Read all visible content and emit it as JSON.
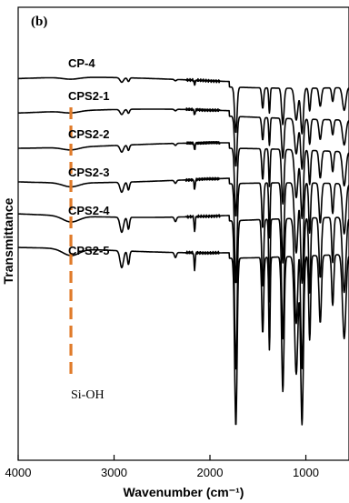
{
  "chart_data": {
    "type": "line",
    "panel_label": "(b)",
    "xlabel": "Wavenumber (cm⁻¹)",
    "ylabel": "Transmittance",
    "xlim": [
      4000,
      550
    ],
    "x_reversed": true,
    "xticks": [
      4000,
      3000,
      2000,
      1000
    ],
    "grid": false,
    "series": [
      {
        "name": "CP-4"
      },
      {
        "name": "CPS2-1"
      },
      {
        "name": "CPS2-2"
      },
      {
        "name": "CPS2-3"
      },
      {
        "name": "CPS2-4"
      },
      {
        "name": "CPS2-5"
      }
    ],
    "annotation": {
      "label": "Si-OH",
      "x": 3450,
      "color": "#e07b2a"
    },
    "spectrum_features": {
      "wavenumbers": [
        4000,
        3450,
        2920,
        2850,
        2360,
        2160,
        1730,
        1450,
        1380,
        1240,
        1100,
        1040,
        960,
        850,
        720,
        600
      ],
      "relative_depth": [
        0,
        0.06,
        0.12,
        0.1,
        0.03,
        0.1,
        1.0,
        0.45,
        0.55,
        0.8,
        0.85,
        1.0,
        0.5,
        0.4,
        0.3,
        0.5
      ]
    }
  }
}
